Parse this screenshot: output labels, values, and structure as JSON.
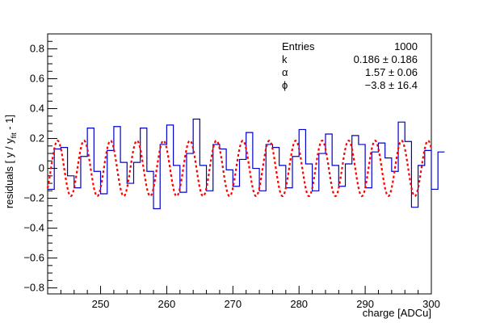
{
  "chart_data": {
    "type": "line",
    "xlabel": "charge [ADCu]",
    "ylabel_main": "residuals [ y / y",
    "ylabel_sub": "fit",
    "ylabel_tail": " - 1]",
    "xlim": [
      242,
      300
    ],
    "ylim": [
      -0.84,
      0.9
    ],
    "x_ticks": [
      250,
      260,
      270,
      280,
      290,
      300
    ],
    "x_tick_labels": [
      "250",
      "260",
      "270",
      "280",
      "290",
      "300"
    ],
    "y_ticks": [
      -0.8,
      -0.6,
      -0.4,
      -0.2,
      0,
      0.2,
      0.4,
      0.6,
      0.8
    ],
    "y_tick_labels": [
      "−0.8",
      "−0.6",
      "−0.4",
      "−0.2",
      "0",
      "0.2",
      "0.4",
      "0.6",
      "0.8"
    ],
    "grid": false,
    "stats": [
      {
        "label": "Entries",
        "value": "1000"
      },
      {
        "label": "k",
        "value": "0.186 ± 0.186"
      },
      {
        "label": "α",
        "value": "1.57 ± 0.06"
      },
      {
        "label": "ϕ",
        "value": "−3.8 ± 16.4"
      }
    ],
    "series": [
      {
        "style": "step",
        "color": "#0000cc",
        "bin_width": 1,
        "x_start": 242,
        "values": [
          -0.14,
          0.13,
          0.14,
          -0.05,
          -0.13,
          0.08,
          0.27,
          -0.02,
          -0.17,
          0.12,
          0.28,
          0.04,
          -0.1,
          0.04,
          0.27,
          -0.02,
          -0.27,
          0.16,
          0.29,
          0.02,
          -0.16,
          0.1,
          0.33,
          0.02,
          -0.15,
          0.16,
          0.13,
          -0.01,
          -0.12,
          0.06,
          0.24,
          0.0,
          -0.15,
          0.16,
          0.14,
          0.02,
          -0.13,
          0.08,
          0.26,
          0.03,
          -0.15,
          0.1,
          0.23,
          0.02,
          -0.12,
          0.03,
          0.22,
          0.16,
          -0.13,
          0.11,
          0.17,
          0.07,
          -0.02,
          0.31,
          0.18,
          -0.26,
          0.02,
          0.12,
          -0.14,
          0.11
        ]
      },
      {
        "style": "dashed",
        "color": "#ff0000",
        "amplitude": 0.186,
        "period": 4.0,
        "peak_x": 243.5
      }
    ]
  }
}
